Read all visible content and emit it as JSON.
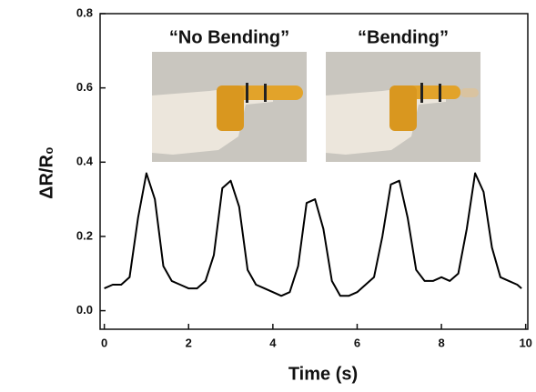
{
  "chart_data": {
    "type": "line",
    "xlabel": "Time (s)",
    "ylabel": "ΔR/R₀",
    "annotations": [
      "“No Bending”",
      "“Bending”"
    ],
    "x": [
      0,
      0.2,
      0.4,
      0.6,
      0.8,
      1.0,
      1.2,
      1.4,
      1.6,
      1.8,
      2.0,
      2.2,
      2.4,
      2.6,
      2.8,
      3.0,
      3.2,
      3.4,
      3.6,
      3.8,
      4.0,
      4.2,
      4.4,
      4.6,
      4.8,
      5.0,
      5.2,
      5.4,
      5.6,
      5.8,
      6.0,
      6.2,
      6.4,
      6.6,
      6.8,
      7.0,
      7.2,
      7.4,
      7.6,
      7.8,
      8.0,
      8.2,
      8.4,
      8.6,
      8.8,
      9.0,
      9.2,
      9.4,
      9.6,
      9.8,
      9.9
    ],
    "values": [
      0.06,
      0.07,
      0.07,
      0.09,
      0.25,
      0.37,
      0.3,
      0.12,
      0.08,
      0.07,
      0.06,
      0.06,
      0.08,
      0.15,
      0.33,
      0.35,
      0.28,
      0.11,
      0.07,
      0.06,
      0.05,
      0.04,
      0.05,
      0.12,
      0.29,
      0.3,
      0.22,
      0.08,
      0.04,
      0.04,
      0.05,
      0.07,
      0.09,
      0.2,
      0.34,
      0.35,
      0.25,
      0.11,
      0.08,
      0.08,
      0.09,
      0.08,
      0.1,
      0.22,
      0.37,
      0.32,
      0.17,
      0.09,
      0.08,
      0.07,
      0.06
    ],
    "color": "#000000",
    "xlim": [
      -0.1,
      10.05
    ],
    "ylim": [
      -0.05,
      0.8
    ],
    "xticks": [
      0,
      2,
      4,
      6,
      8,
      10
    ],
    "yticks": [
      {
        "value": 0,
        "label": "0.0"
      },
      0.2,
      0.4,
      0.6,
      0.8
    ],
    "grid": false
  }
}
